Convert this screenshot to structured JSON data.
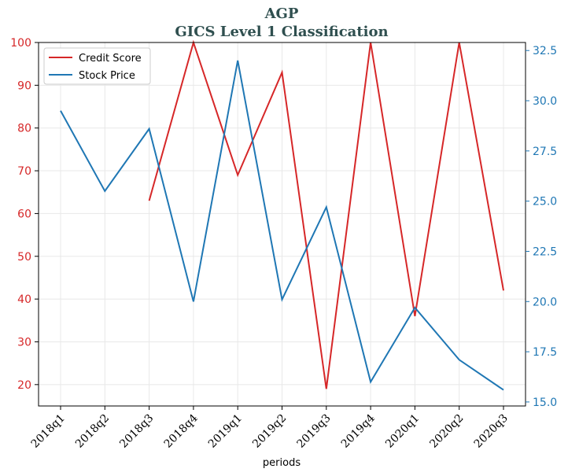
{
  "chart_data": {
    "type": "line",
    "title": "AGP",
    "subtitle": "GICS Level 1 Classification",
    "xlabel": "periods",
    "categories": [
      "2018q1",
      "2018q2",
      "2018q3",
      "2018q4",
      "2019q1",
      "2019q2",
      "2019q3",
      "2019q4",
      "2020q1",
      "2020q2",
      "2020q3"
    ],
    "left_axis": {
      "ylim": [
        15,
        100
      ],
      "ticks": [
        "20",
        "30",
        "40",
        "50",
        "60",
        "70",
        "80",
        "90",
        "100"
      ],
      "color": "#d62728"
    },
    "right_axis": {
      "ylim": [
        14.8,
        32.9
      ],
      "ticks": [
        "15.0",
        "17.5",
        "20.0",
        "22.5",
        "25.0",
        "27.5",
        "30.0",
        "32.5"
      ],
      "color": "#1f77b4"
    },
    "series": [
      {
        "name": "Credit Score",
        "axis": "left",
        "color": "#d62728",
        "values": [
          null,
          null,
          63,
          100,
          69,
          93,
          19,
          100,
          36,
          100,
          42
        ]
      },
      {
        "name": "Stock Price",
        "axis": "right",
        "color": "#1f77b4",
        "values": [
          29.5,
          25.5,
          28.6,
          20.0,
          32.0,
          20.1,
          24.7,
          16.0,
          19.7,
          17.1,
          15.6
        ]
      }
    ],
    "grid": true,
    "legend_position": "top-left"
  }
}
